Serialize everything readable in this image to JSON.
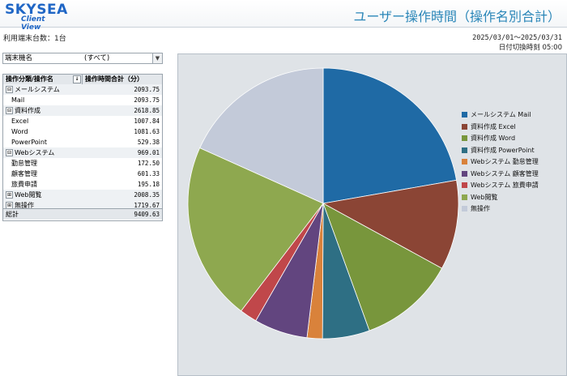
{
  "header": {
    "logo_line1": "SKYSEA",
    "logo_line2": "Client View",
    "title": "ユーザー操作時間（操作名別合計）"
  },
  "info": {
    "device_count": "利用端末台数：1台",
    "date_range": "2025/03/01～2025/03/31",
    "cutoff": "日付切換時刻 05:00"
  },
  "filter": {
    "label": "端末機名",
    "value": "(すべて)",
    "dropdown_icon": "chevron-down-icon"
  },
  "table": {
    "headers": [
      "操作分類/操作名",
      "操作時間合計（分）"
    ],
    "sort_icon": "sort-icon",
    "rows": [
      {
        "label": "メールシステム",
        "value": "2093.75",
        "type": "cat",
        "expander": "⊟"
      },
      {
        "label": "Mail",
        "value": "2093.75",
        "type": "sub"
      },
      {
        "label": "資料作成",
        "value": "2618.85",
        "type": "cat",
        "expander": "⊟"
      },
      {
        "label": "Excel",
        "value": "1007.84",
        "type": "sub"
      },
      {
        "label": "Word",
        "value": "1081.63",
        "type": "sub"
      },
      {
        "label": "PowerPoint",
        "value": "529.38",
        "type": "sub"
      },
      {
        "label": "Webシステム",
        "value": "969.01",
        "type": "cat",
        "expander": "⊟"
      },
      {
        "label": "勤怠管理",
        "value": "172.50",
        "type": "sub"
      },
      {
        "label": "顧客管理",
        "value": "601.33",
        "type": "sub"
      },
      {
        "label": "旅費申請",
        "value": "195.18",
        "type": "sub"
      },
      {
        "label": "Web閲覧",
        "value": "2008.35",
        "type": "cat",
        "expander": "⊞"
      },
      {
        "label": "無操作",
        "value": "1719.67",
        "type": "cat",
        "expander": "⊞"
      }
    ],
    "total": {
      "label": "総計",
      "value": "9409.63"
    }
  },
  "chart_data": {
    "type": "pie",
    "title": "",
    "start": "12 o'clock",
    "direction": "clockwise",
    "legend_position": "right",
    "slices": [
      {
        "label": "メールシステム Mail",
        "value": 2093.75,
        "color": "#1f6aa5"
      },
      {
        "label": "資料作成 Excel",
        "value": 1007.84,
        "color": "#8b4535"
      },
      {
        "label": "資料作成 Word",
        "value": 1081.63,
        "color": "#78963c"
      },
      {
        "label": "資料作成 PowerPoint",
        "value": 529.38,
        "color": "#2e6f84"
      },
      {
        "label": "Webシステム 勤怠管理",
        "value": 172.5,
        "color": "#d9823b"
      },
      {
        "label": "Webシステム 顧客管理",
        "value": 601.33,
        "color": "#62457f"
      },
      {
        "label": "Webシステム 旅費申請",
        "value": 195.18,
        "color": "#c0474a"
      },
      {
        "label": "Web閲覧",
        "value": 2008.35,
        "color": "#8ea84f"
      },
      {
        "label": "無操作",
        "value": 1719.67,
        "color": "#c3cad9"
      }
    ]
  }
}
